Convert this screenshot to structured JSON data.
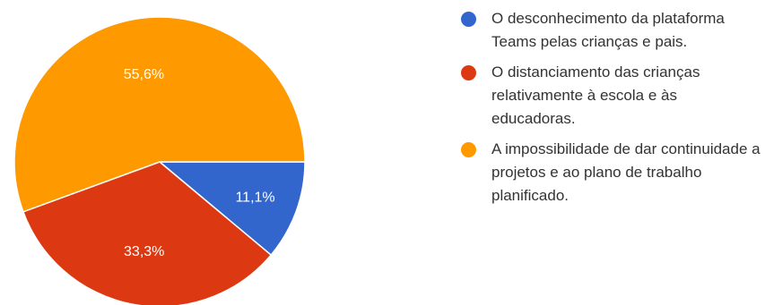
{
  "chart_data": {
    "type": "pie",
    "slices": [
      {
        "label": "O desconhecimento da plataforma Teams pelas crianças e pais.",
        "value": 11.1,
        "value_label": "11,1%",
        "color": "#3366CC"
      },
      {
        "label": "O distanciamento das crianças relativamente à escola e às educadoras.",
        "value": 33.3,
        "value_label": "33,3%",
        "color": "#DC3912"
      },
      {
        "label": "A impossibilidade de dar continuidade a projetos e ao plano de trabalho planificado.",
        "value": 55.6,
        "value_label": "55,6%",
        "color": "#FF9900"
      }
    ],
    "legend_position": "right",
    "start_angle": "3 o'clock, clockwise"
  }
}
